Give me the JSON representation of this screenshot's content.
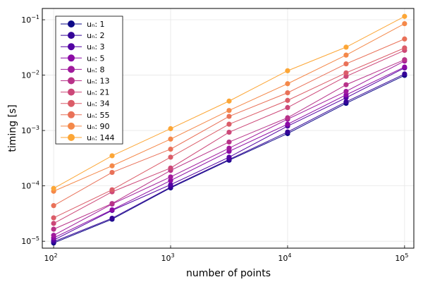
{
  "chart_data": {
    "type": "line",
    "title": "",
    "xlabel": "number of points",
    "ylabel": "timing [s]",
    "xscale": "log",
    "yscale": "log",
    "xlim": [
      80,
      120000
    ],
    "ylim": [
      7.5e-06,
      0.16
    ],
    "x": [
      100,
      316,
      1000,
      3162,
      10000,
      31623,
      100000
    ],
    "x_ticks": [
      {
        "value": 100,
        "base": "10",
        "exp": "2"
      },
      {
        "value": 1000,
        "base": "10",
        "exp": "3"
      },
      {
        "value": 10000,
        "base": "10",
        "exp": "4"
      },
      {
        "value": 100000,
        "base": "10",
        "exp": "5"
      }
    ],
    "y_ticks": [
      {
        "value": 1e-05,
        "base": "10",
        "exp": "−5"
      },
      {
        "value": 0.0001,
        "base": "10",
        "exp": "−4"
      },
      {
        "value": 0.001,
        "base": "10",
        "exp": "−3"
      },
      {
        "value": 0.01,
        "base": "10",
        "exp": "−2"
      },
      {
        "value": 0.1,
        "base": "10",
        "exp": "−1"
      }
    ],
    "grid": true,
    "legend_position": "top-left",
    "series": [
      {
        "name": "uₙ: 1",
        "color": "#0d0887",
        "values": [
          9.3e-06,
          2.5e-05,
          9.2e-05,
          0.00029,
          0.00088,
          0.0031,
          0.0099
        ]
      },
      {
        "name": "uₙ: 2",
        "color": "#350498",
        "values": [
          9.8e-06,
          2.6e-05,
          9.5e-05,
          0.0003,
          0.00094,
          0.0033,
          0.0105
        ]
      },
      {
        "name": "uₙ: 3",
        "color": "#5302a3",
        "values": [
          1.05e-05,
          3.6e-05,
          0.000105,
          0.00033,
          0.0012,
          0.0039,
          0.0135
        ]
      },
      {
        "name": "uₙ: 5",
        "color": "#8b0aa5",
        "values": [
          1.15e-05,
          3.7e-05,
          0.000125,
          0.00042,
          0.0013,
          0.0044,
          0.014
        ]
      },
      {
        "name": "uₙ: 8",
        "color": "#a01a9c",
        "values": [
          1.28e-05,
          4.7e-05,
          0.000145,
          0.00048,
          0.0016,
          0.0051,
          0.018
        ]
      },
      {
        "name": "uₙ: 13",
        "color": "#b83289",
        "values": [
          1.65e-05,
          4.8e-05,
          0.00019,
          0.00062,
          0.0017,
          0.0067,
          0.019
        ]
      },
      {
        "name": "uₙ: 21",
        "color": "#cc4778",
        "values": [
          2.1e-05,
          7.8e-05,
          0.00021,
          0.00093,
          0.0026,
          0.0095,
          0.028
        ]
      },
      {
        "name": "uₙ: 34",
        "color": "#db5c68",
        "values": [
          2.65e-05,
          8.5e-05,
          0.00033,
          0.0013,
          0.0035,
          0.011,
          0.031
        ]
      },
      {
        "name": "uₙ: 55",
        "color": "#e97158",
        "values": [
          4.4e-05,
          0.000175,
          0.00046,
          0.0018,
          0.0048,
          0.016,
          0.045
        ]
      },
      {
        "name": "uₙ: 90",
        "color": "#f48849",
        "values": [
          8e-05,
          0.00023,
          0.0007,
          0.0023,
          0.007,
          0.023,
          0.085
        ]
      },
      {
        "name": "uₙ: 144",
        "color": "#fca636",
        "values": [
          9e-05,
          0.00035,
          0.00108,
          0.0034,
          0.012,
          0.032,
          0.115
        ]
      }
    ]
  }
}
